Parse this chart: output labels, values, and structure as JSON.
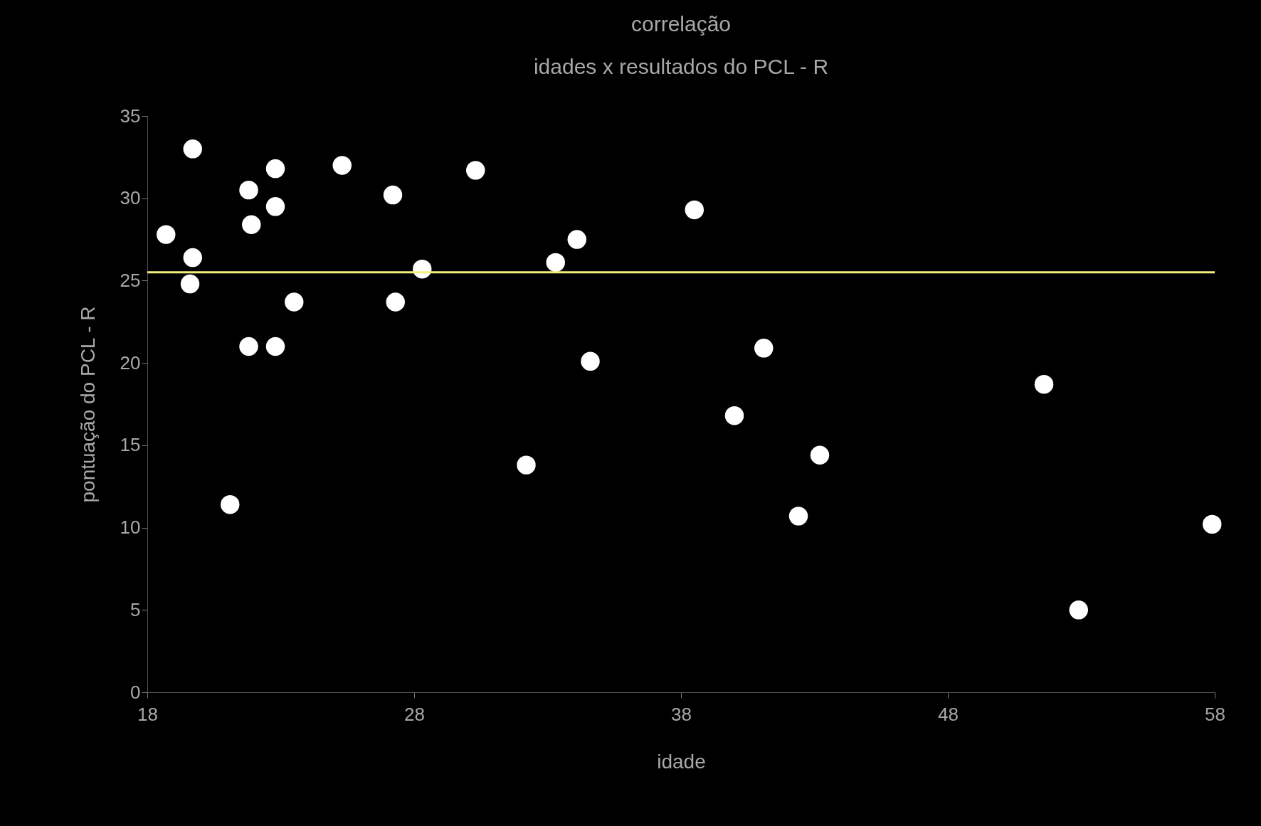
{
  "chart_data": {
    "type": "scatter",
    "title": "correlação",
    "subtitle": "idades x resultados do PCL - R",
    "xlabel": "idade",
    "ylabel": "pontuação do PCL - R",
    "x": [
      18.7,
      19.7,
      19.7,
      19.6,
      21.1,
      21.8,
      21.9,
      21.8,
      22.8,
      22.8,
      22.8,
      23.5,
      25.3,
      27.2,
      27.3,
      28.3,
      30.3,
      32.2,
      33.3,
      34.1,
      34.6,
      38.5,
      40.0,
      41.1,
      42.4,
      43.2,
      51.6,
      52.9,
      57.9
    ],
    "series": [
      {
        "color": "#ffffff",
        "values": [
          27.8,
          33.0,
          26.4,
          24.8,
          11.4,
          30.5,
          28.4,
          21.0,
          31.8,
          29.5,
          21.0,
          23.7,
          32.0,
          30.2,
          23.7,
          25.7,
          31.7,
          13.8,
          26.1,
          27.5,
          20.1,
          29.3,
          16.8,
          20.9,
          10.7,
          14.4,
          18.7,
          5.0,
          10.2
        ]
      }
    ],
    "xlim": [
      18,
      58
    ],
    "xticks": [
      18,
      28,
      38,
      48,
      58
    ],
    "ylim": [
      0,
      35
    ],
    "yticks": [
      0,
      5,
      10,
      15,
      20,
      25,
      30,
      35
    ],
    "ref_lines": [
      {
        "axis": "y",
        "value": 25.5,
        "color": "#f0f080"
      }
    ],
    "marker": "circle",
    "grid": false,
    "legend": false
  }
}
